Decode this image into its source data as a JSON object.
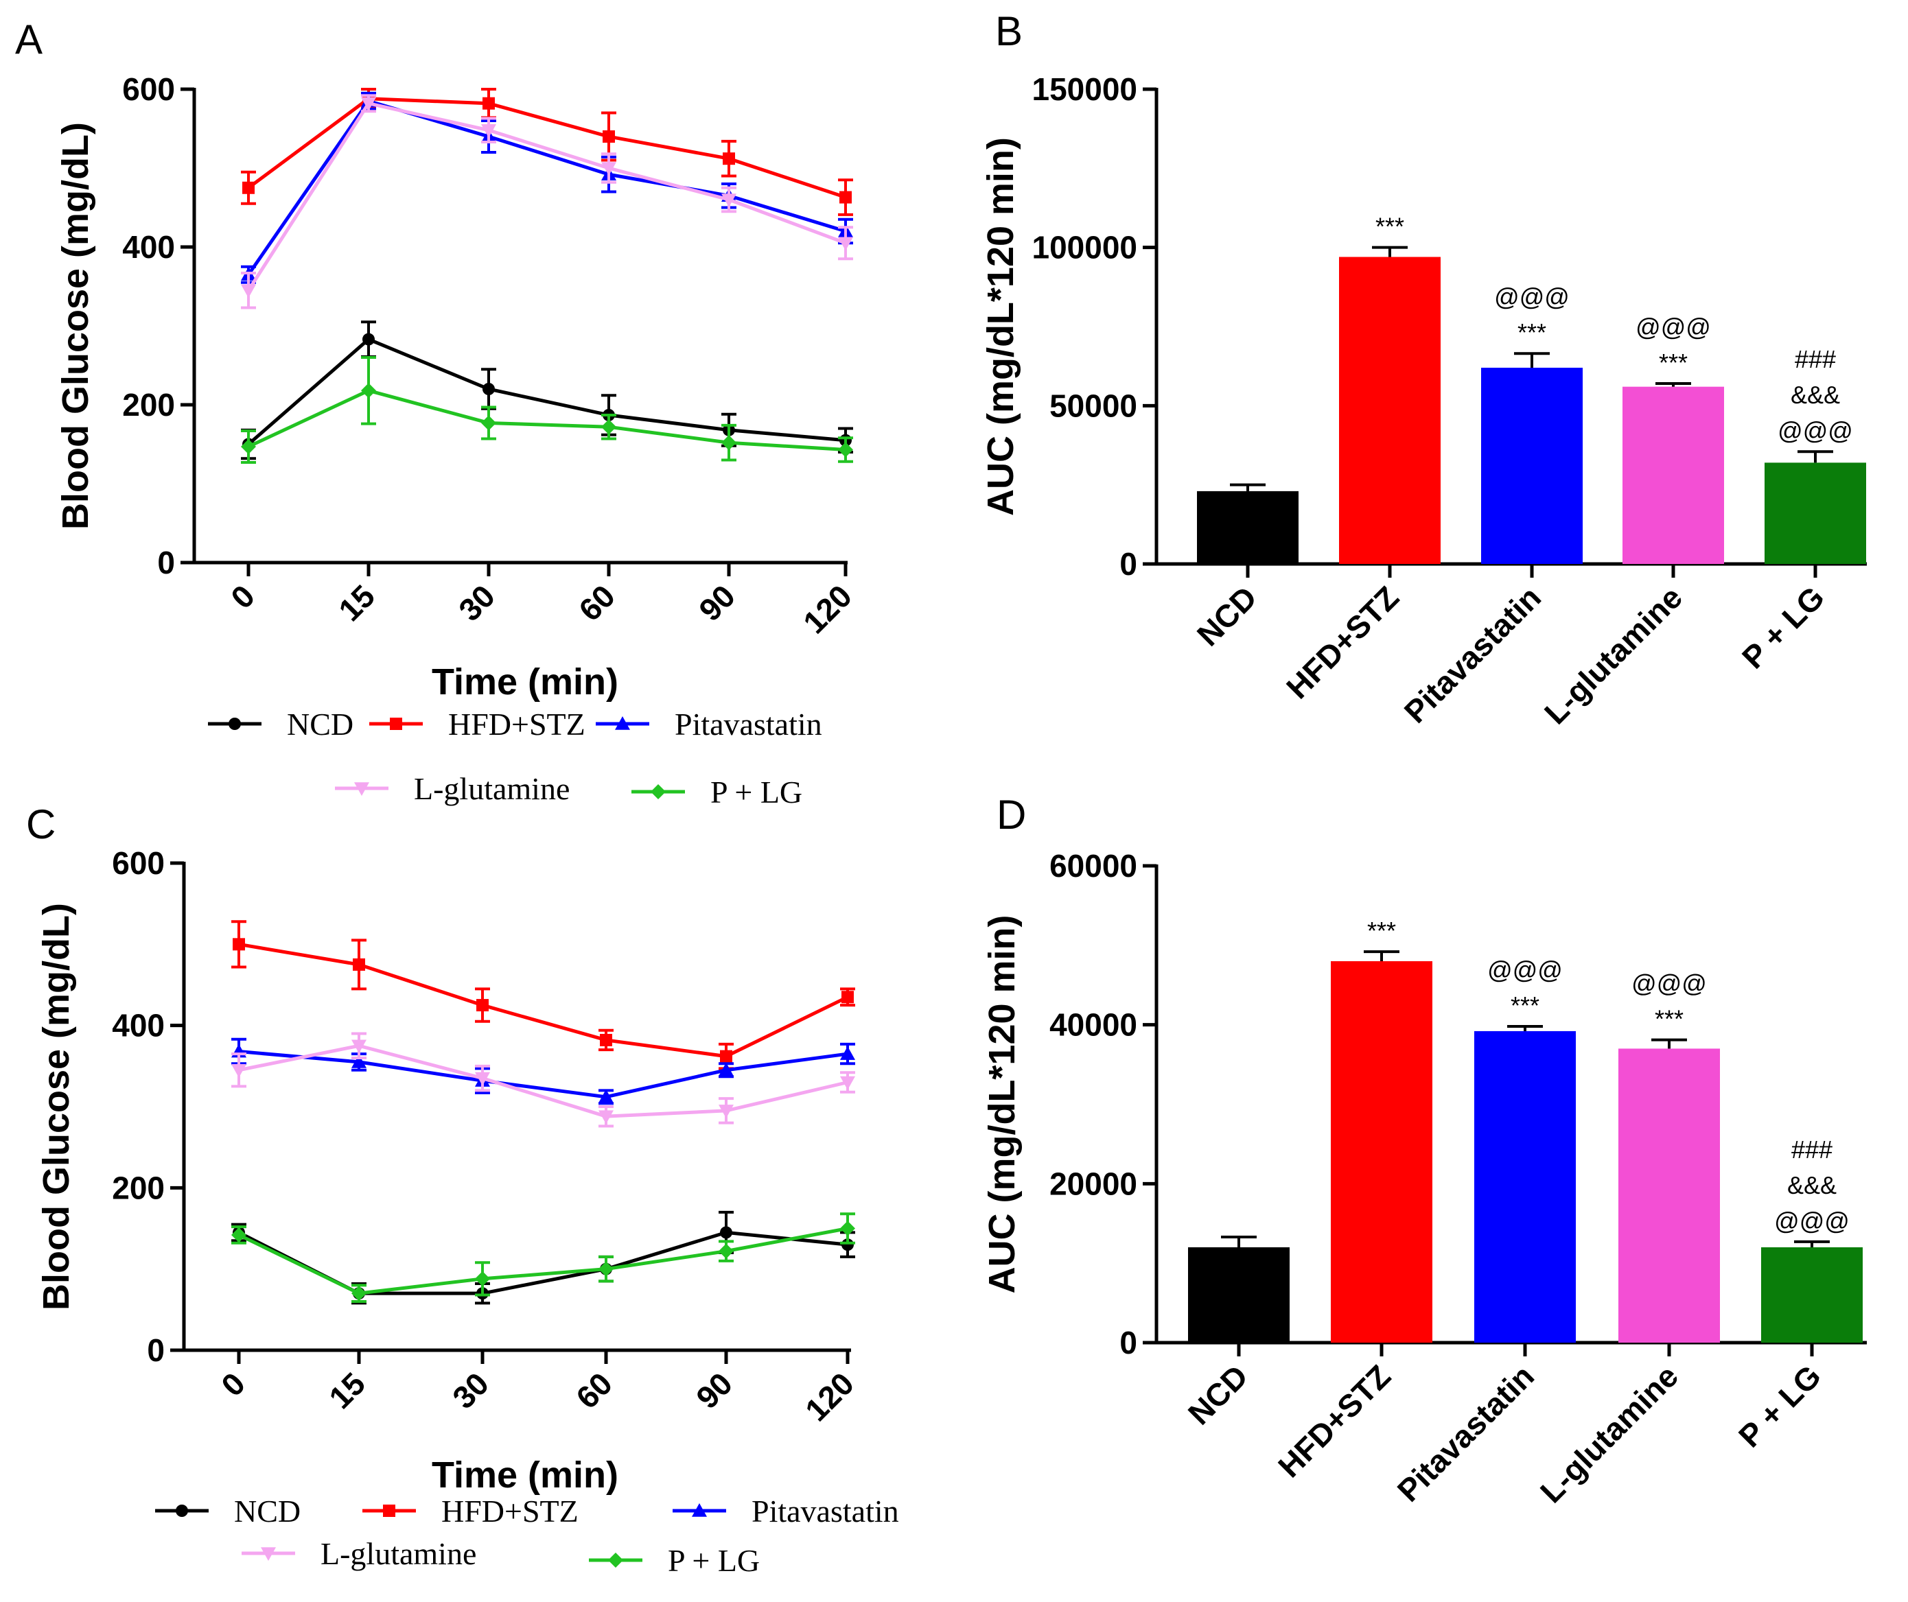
{
  "chart_data": [
    {
      "panel": "A",
      "type": "line",
      "ylabel": "Blood Glucose (mg/dL)",
      "xlabel": "Time (min)",
      "categories": [
        "0",
        "15",
        "30",
        "60",
        "90",
        "120"
      ],
      "ylim": [
        0,
        600
      ],
      "yticks": [
        "0",
        "200",
        "400",
        "600"
      ],
      "series": [
        {
          "name": "NCD",
          "color": "#000000",
          "marker": "circle",
          "values": [
            150,
            283,
            220,
            187,
            168,
            155
          ],
          "errors": [
            18,
            22,
            25,
            25,
            20,
            15
          ]
        },
        {
          "name": "HFD+STZ",
          "color": "#ff0000",
          "marker": "square",
          "values": [
            475,
            588,
            582,
            540,
            512,
            463
          ],
          "errors": [
            20,
            12,
            18,
            30,
            22,
            22
          ]
        },
        {
          "name": "Pitavastatin",
          "color": "#0000ff",
          "marker": "triangle-up",
          "values": [
            365,
            585,
            540,
            492,
            465,
            420
          ],
          "errors": [
            10,
            10,
            20,
            22,
            15,
            15
          ]
        },
        {
          "name": "L-glutamine",
          "color": "#f4a6f0",
          "marker": "triangle-down",
          "values": [
            345,
            582,
            548,
            500,
            460,
            405
          ],
          "errors": [
            22,
            10,
            15,
            18,
            15,
            20
          ]
        },
        {
          "name": "P + LG",
          "color": "#22c322",
          "marker": "diamond",
          "values": [
            147,
            218,
            177,
            172,
            152,
            143
          ],
          "errors": [
            20,
            42,
            20,
            15,
            22,
            15
          ]
        }
      ]
    },
    {
      "panel": "B",
      "type": "bar",
      "ylabel": "AUC (mg/dL*120 min)",
      "categories": [
        "NCD",
        "HFD+STZ",
        "Pitavastatin",
        "L-glutamine",
        "P + LG"
      ],
      "values": [
        23000,
        97000,
        62000,
        56000,
        32000
      ],
      "errors": [
        2000,
        3000,
        4500,
        1000,
        3500
      ],
      "colors": [
        "#000000",
        "#ff0000",
        "#0000ff",
        "#f34fd4",
        "#0a7d0a"
      ],
      "ylim": [
        0,
        150000
      ],
      "yticks": [
        "0",
        "50000",
        "100000",
        "150000"
      ],
      "annotations": [
        [],
        [
          "***"
        ],
        [
          "***",
          "@@@"
        ],
        [
          "***",
          "@@@"
        ],
        [
          "@@@",
          "&&&",
          "###"
        ]
      ]
    },
    {
      "panel": "C",
      "type": "line",
      "ylabel": "Blood Glucose (mg/dL)",
      "xlabel": "Time (min)",
      "categories": [
        "0",
        "15",
        "30",
        "60",
        "90",
        "120"
      ],
      "ylim": [
        0,
        600
      ],
      "yticks": [
        "0",
        "200",
        "400",
        "600"
      ],
      "series": [
        {
          "name": "NCD",
          "color": "#000000",
          "marker": "circle",
          "values": [
            145,
            70,
            70,
            100,
            145,
            130
          ],
          "errors": [
            10,
            12,
            12,
            15,
            25,
            15
          ]
        },
        {
          "name": "HFD+STZ",
          "color": "#ff0000",
          "marker": "square",
          "values": [
            500,
            475,
            425,
            382,
            362,
            435
          ],
          "errors": [
            28,
            30,
            20,
            12,
            15,
            10
          ]
        },
        {
          "name": "Pitavastatin",
          "color": "#0000ff",
          "marker": "triangle-up",
          "values": [
            368,
            355,
            332,
            312,
            345,
            365
          ],
          "errors": [
            15,
            10,
            15,
            8,
            8,
            12
          ]
        },
        {
          "name": "L-glutamine",
          "color": "#f4a6f0",
          "marker": "triangle-down",
          "values": [
            345,
            375,
            335,
            288,
            295,
            330
          ],
          "errors": [
            20,
            15,
            15,
            12,
            15,
            12
          ]
        },
        {
          "name": "P + LG",
          "color": "#22c322",
          "marker": "diamond",
          "values": [
            142,
            70,
            88,
            100,
            122,
            150
          ],
          "errors": [
            10,
            10,
            20,
            15,
            12,
            18
          ]
        }
      ]
    },
    {
      "panel": "D",
      "type": "bar",
      "ylabel": "AUC (mg/dL*120 min)",
      "categories": [
        "NCD",
        "HFD+STZ",
        "Pitavastatin",
        "L-glutamine",
        "P + LG"
      ],
      "values": [
        12000,
        48000,
        39200,
        37000,
        12000
      ],
      "errors": [
        1300,
        1200,
        600,
        1100,
        700
      ],
      "colors": [
        "#000000",
        "#ff0000",
        "#0000ff",
        "#f34fd4",
        "#0a7d0a"
      ],
      "ylim": [
        0,
        60000
      ],
      "yticks": [
        "0",
        "20000",
        "40000",
        "60000"
      ],
      "annotations": [
        [],
        [
          "***"
        ],
        [
          "***",
          "@@@"
        ],
        [
          "***",
          "@@@"
        ],
        [
          "@@@",
          "&&&",
          "###"
        ]
      ]
    }
  ]
}
